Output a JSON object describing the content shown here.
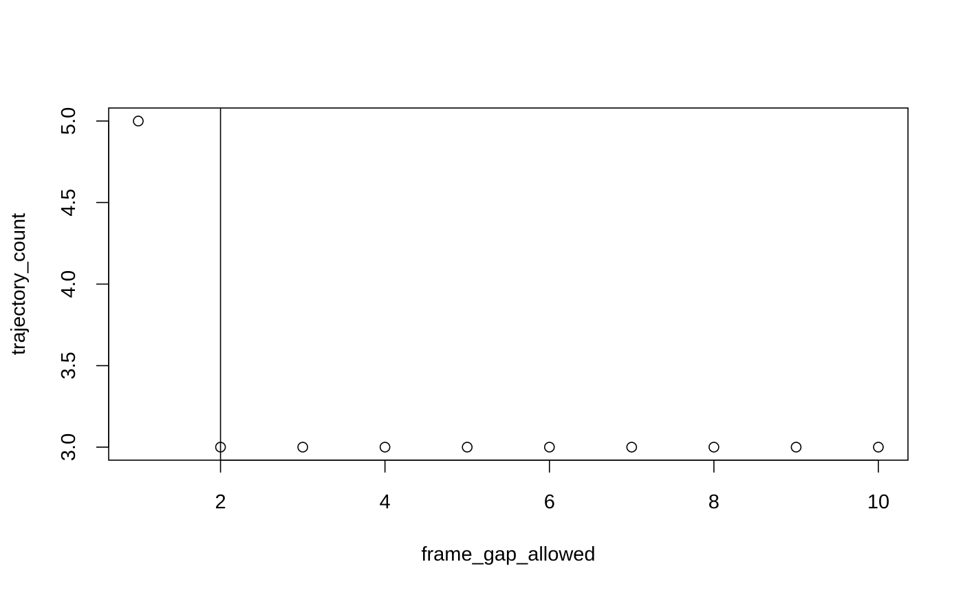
{
  "chart_data": {
    "type": "scatter",
    "title": "",
    "xlabel": "frame_gap_allowed",
    "ylabel": "trajectory_count",
    "x": [
      1,
      2,
      3,
      4,
      5,
      6,
      7,
      8,
      9,
      10
    ],
    "y": [
      5,
      3,
      3,
      3,
      3,
      3,
      3,
      3,
      3,
      3
    ],
    "xlim": [
      0.64,
      10.36
    ],
    "ylim": [
      2.92,
      5.08
    ],
    "xticks": [
      2,
      4,
      6,
      8,
      10
    ],
    "xtick_labels": [
      "2",
      "4",
      "6",
      "8",
      "10"
    ],
    "yticks": [
      3.0,
      3.5,
      4.0,
      4.5,
      5.0
    ],
    "ytick_labels": [
      "3.0",
      "3.5",
      "4.0",
      "4.5",
      "5.0"
    ],
    "vline_x": 2,
    "marker": "open-circle",
    "grid": false,
    "legend": "none",
    "colors": {
      "marks": "#000000",
      "background": "#ffffff"
    }
  }
}
